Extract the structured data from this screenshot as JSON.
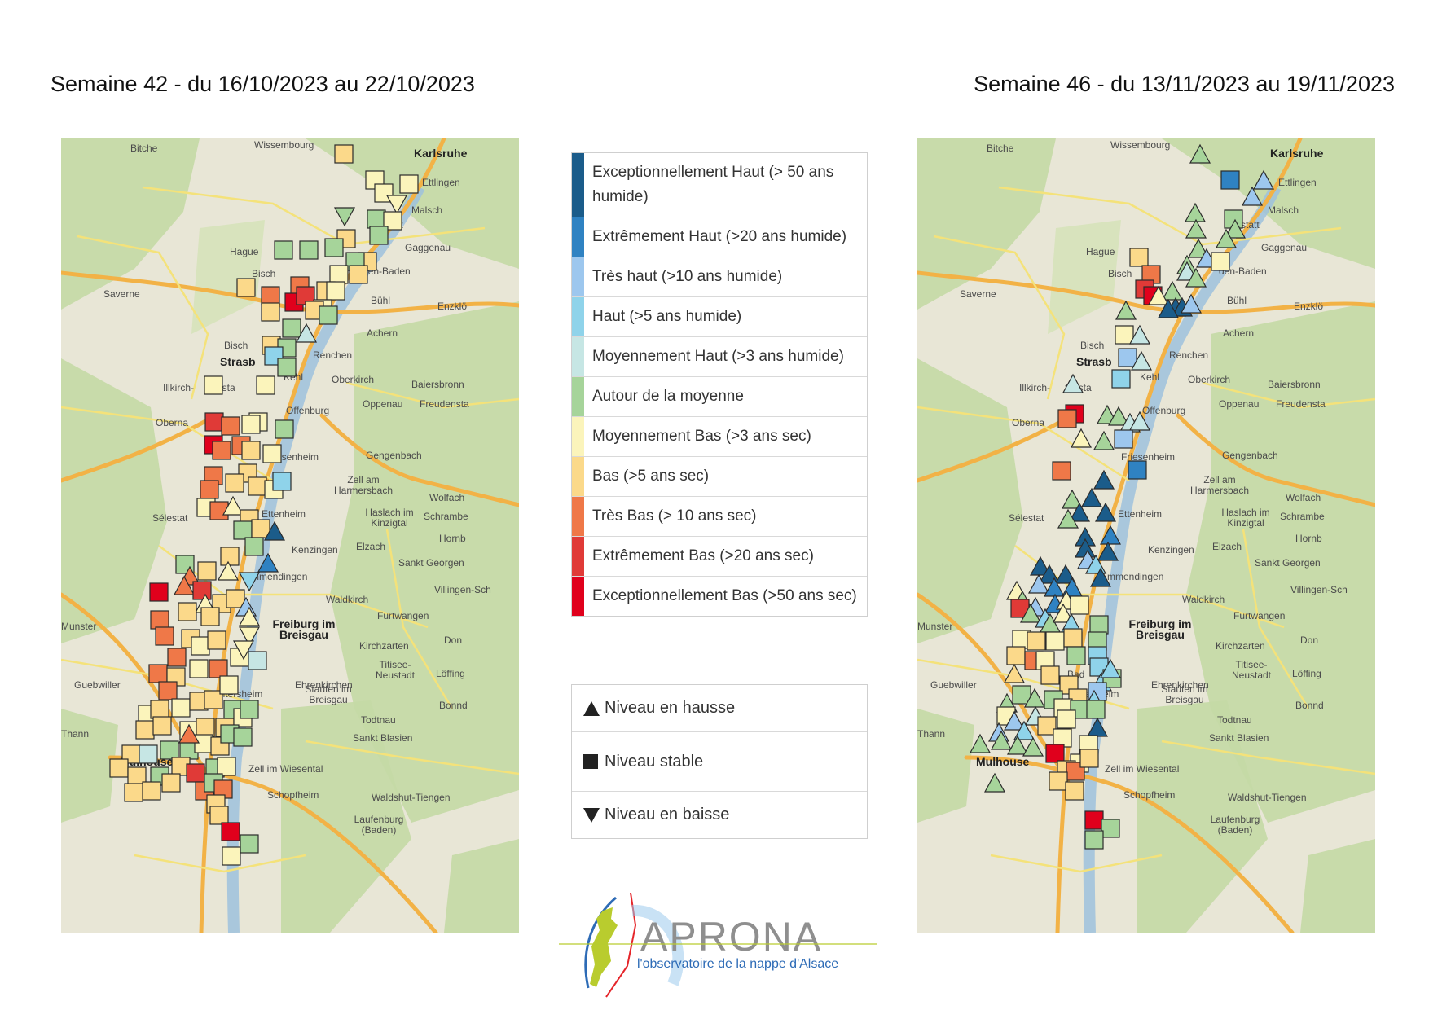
{
  "titles": {
    "left": "Semaine 42 - du 16/10/2023 au 22/10/2023",
    "right": "Semaine 46 - du 13/11/2023 au 19/11/2023"
  },
  "map_places": {
    "bitche": "Bitche",
    "wissembourg": "Wissembourg",
    "karlsruhe": "Karlsruhe",
    "ettlingen": "Ettlingen",
    "malsch": "Malsch",
    "rastatt": "statt",
    "gaggenau": "Gaggenau",
    "haguenau": "Hague",
    "bischwiller": "Bisch",
    "baden": "den-Baden",
    "saverne": "Saverne",
    "buhl": "Bühl",
    "enzklo": "Enzklö",
    "achern": "Achern",
    "bischheim": "Bisch",
    "renchen": "Renchen",
    "strasbourg": "Strasb",
    "kehl": "Kehl",
    "oberkirch": "Oberkirch",
    "baiersbronn": "Baiersbronn",
    "illkirch": "Illkirch-",
    "fenstal": "fensta",
    "oppenau": "Oppenau",
    "freudenstadt": "Freudensta",
    "offenburg": "Offenburg",
    "obernai": "Oberna",
    "gengenbach": "Gengenbach",
    "friesenheim": "Friesenheim",
    "zell": "Zell am Harmersbach",
    "wolfach": "Wolfach",
    "selestat": "Sélestat",
    "ettenheim": "Ettenheim",
    "haslach": "Haslach im Kinzigtal",
    "schramberg": "Schrambe",
    "kenzingen": "Kenzingen",
    "elzach": "Elzach",
    "hornberg": "Hornb",
    "stgeorgen": "Sankt Georgen",
    "emmendingen": "Emmendingen",
    "waldkirch": "Waldkirch",
    "villingen": "Villingen-Sch",
    "munster": "Munster",
    "freiburg": "Freiburg im Breisgau",
    "furtwangen": "Furtwangen",
    "kirchzarten": "Kirchzarten",
    "staufen": "Staufen im Breisgau",
    "titisee": "Titisee-Neustadt",
    "guebwiller": "Guebwiller",
    "ehrenkirchen": "Ehrenkirchen",
    "heitersheim": "eitersheim",
    "todtnau": "Todtnau",
    "thann": "Thann",
    "stblasien": "Sankt Blasien",
    "mulhouse": "Mulhouse",
    "zellwiesental": "Zell im Wiesental",
    "schopfheim": "Schopfheim",
    "waldshut": "Waldshut-Tiengen",
    "laufenburg": "Laufenburg (Baden)",
    "breisach": "Bad",
    "doni": "Don",
    "bonn": "Bonnd",
    "loff": "Löffing"
  },
  "legend_levels": [
    {
      "label": "Exceptionnellement Haut (> 50 ans humide)",
      "color": "#1b5c8a"
    },
    {
      "label": "Extrêmement Haut (>20 ans humide)",
      "color": "#2f82c2"
    },
    {
      "label": "Très haut (>10 ans humide)",
      "color": "#9dc7ee"
    },
    {
      "label": "Haut (>5 ans humide)",
      "color": "#8fd3ea"
    },
    {
      "label": "Moyennement Haut (>3 ans humide)",
      "color": "#c6e6e4"
    },
    {
      "label": "Autour de la moyenne",
      "color": "#a6d49a"
    },
    {
      "label": "Moyennement Bas (>3 ans sec)",
      "color": "#fbf4bb"
    },
    {
      "label": "Bas (>5 ans sec)",
      "color": "#fbd98a"
    },
    {
      "label": "Très Bas (> 10 ans sec)",
      "color": "#ef7848"
    },
    {
      "label": "Extrêmement Bas (>20 ans sec)",
      "color": "#e03a37"
    },
    {
      "label": "Exceptionnellement Bas (>50 ans sec)",
      "color": "#e0001c"
    }
  ],
  "legend_trends": [
    {
      "label": "Niveau en hausse",
      "icon": "triangle-up-icon"
    },
    {
      "label": "Niveau stable",
      "icon": "square-icon"
    },
    {
      "label": "Niveau en baisse",
      "icon": "triangle-down-icon"
    }
  ],
  "logo": {
    "name": "APRONA",
    "tagline": "l'observatoire de la nappe d'Alsace"
  }
}
